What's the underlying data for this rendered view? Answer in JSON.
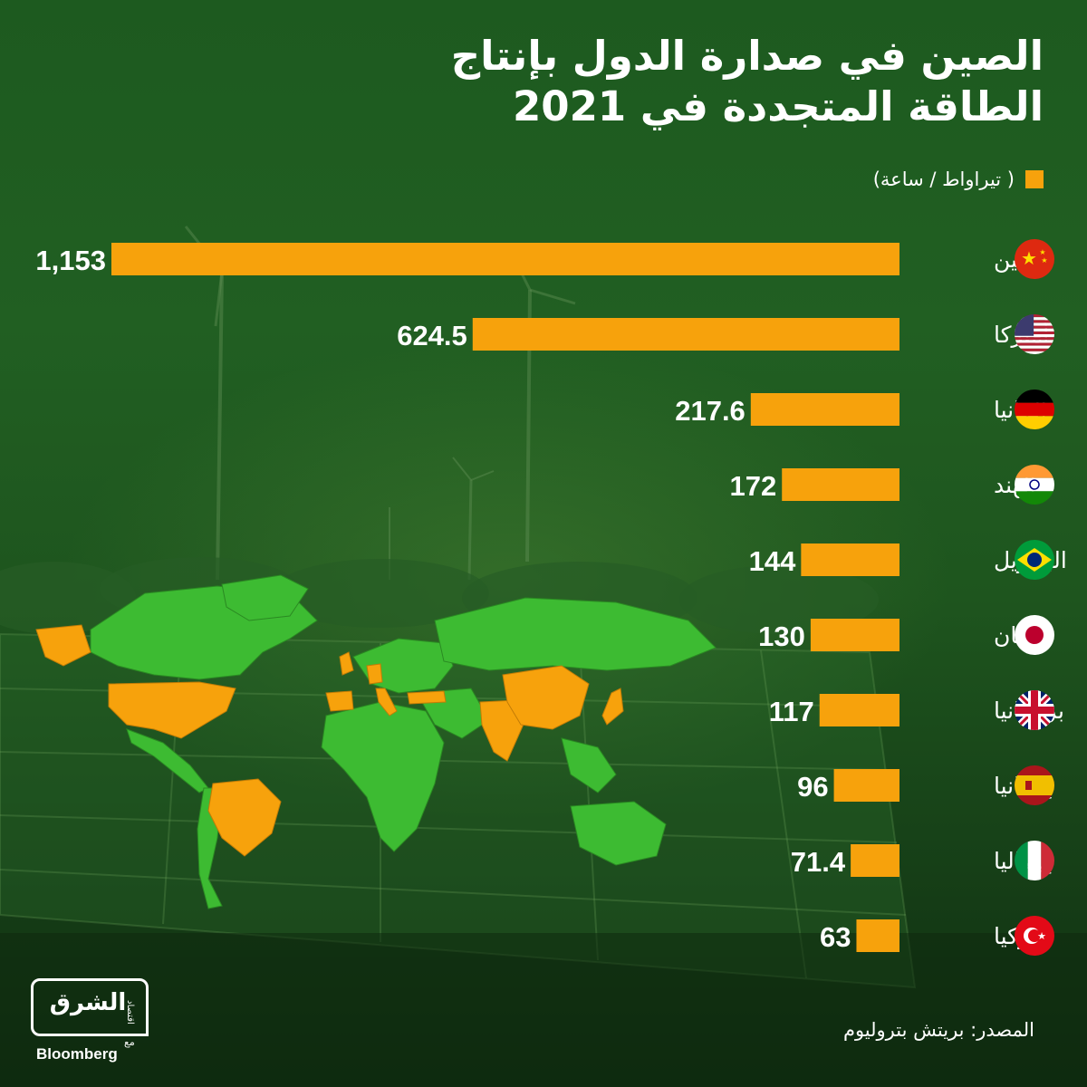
{
  "header": {
    "title_line1": "الصين في صدارة الدول بإنتاج",
    "title_line2": "الطاقة المتجددة في 2021",
    "legend_label": "( تيراواط / ساعة)"
  },
  "colors": {
    "bar": "#f7a20c",
    "map_land": "#3dbb32",
    "map_highlight": "#f7a20c",
    "text": "#ffffff"
  },
  "chart_data": {
    "type": "bar",
    "orientation": "horizontal",
    "title": "الصين في صدارة الدول بإنتاج الطاقة المتجددة في 2021",
    "unit": "( تيراواط / ساعة)",
    "categories": [
      "الصين",
      "أميركا",
      "ألمانيا",
      "الهند",
      "البرازيل",
      "اليابان",
      "بريطانيا",
      "إسبانيا",
      "إيطاليا",
      "تركيا"
    ],
    "values": [
      1153,
      624.5,
      217.6,
      172,
      144,
      130,
      117,
      96,
      71.4,
      63
    ],
    "value_labels": [
      "1,153",
      "624.5",
      "217.6",
      "172",
      "144",
      "130",
      "117",
      "96",
      "71.4",
      "63"
    ],
    "flags": [
      "china-flag-icon",
      "usa-flag-icon",
      "germany-flag-icon",
      "india-flag-icon",
      "brazil-flag-icon",
      "japan-flag-icon",
      "uk-flag-icon",
      "spain-flag-icon",
      "italy-flag-icon",
      "turkey-flag-icon"
    ],
    "xlim": [
      0,
      1153
    ],
    "grid": false,
    "legend": "top-right"
  },
  "footer": {
    "source": "المصدر: بريتش بتروليوم",
    "logo_arabic": "الشرق",
    "logo_sub": "اقتصاد",
    "logo_with": "مع",
    "logo_english": "Bloomberg"
  }
}
